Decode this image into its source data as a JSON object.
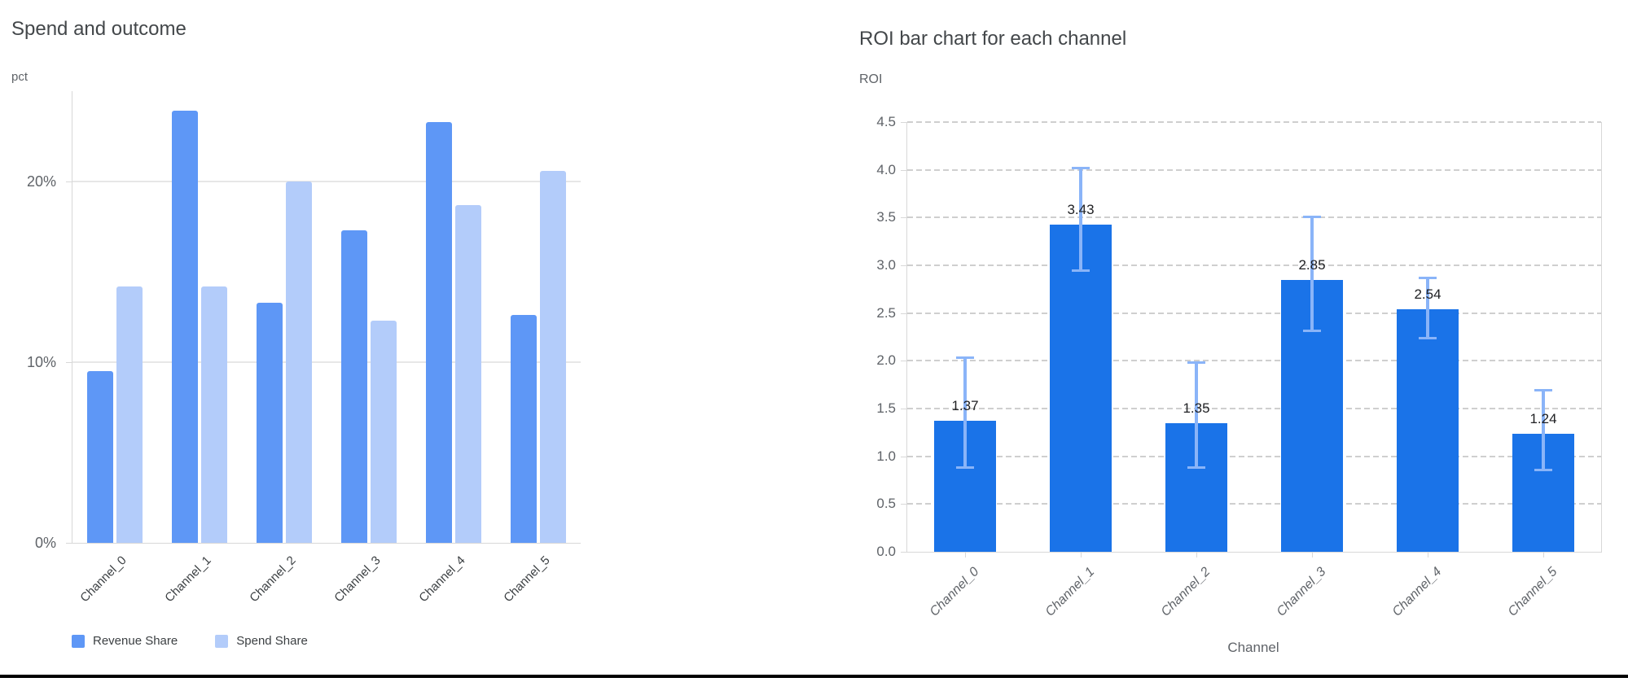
{
  "page": {
    "background": "#ffffff",
    "bottom_rule_color": "#000000"
  },
  "chart_data": [
    {
      "type": "bar",
      "title": "Spend and outcome",
      "ylabel": "pct",
      "xlabel": "",
      "categories": [
        "Channel_0",
        "Channel_1",
        "Channel_2",
        "Channel_3",
        "Channel_4",
        "Channel_5"
      ],
      "series": [
        {
          "name": "Revenue Share",
          "color": "#5e97f6",
          "values": [
            9.5,
            23.9,
            13.3,
            17.3,
            23.3,
            12.6
          ]
        },
        {
          "name": "Spend Share",
          "color": "#b3ccfa",
          "values": [
            14.2,
            14.2,
            20.0,
            12.3,
            18.7,
            20.6
          ]
        }
      ],
      "ylim": [
        0,
        25
      ],
      "yticks": [
        {
          "value": 0,
          "label": "0%"
        },
        {
          "value": 10,
          "label": "10%"
        },
        {
          "value": 20,
          "label": "20%"
        }
      ],
      "grid": "solid",
      "legend_position": "bottom-left"
    },
    {
      "type": "bar",
      "title": "ROI bar chart for each channel",
      "ylabel": "ROI",
      "xlabel": "Channel",
      "categories": [
        "Channel_0",
        "Channel_1",
        "Channel_2",
        "Channel_3",
        "Channel_4",
        "Channel_5"
      ],
      "values": [
        1.37,
        3.43,
        1.35,
        2.85,
        2.54,
        1.24
      ],
      "data_labels": [
        "1.37",
        "3.43",
        "1.35",
        "2.85",
        "2.54",
        "1.24"
      ],
      "error_low": [
        0.89,
        2.95,
        0.89,
        2.32,
        2.24,
        0.86
      ],
      "error_high": [
        2.04,
        4.02,
        1.99,
        3.51,
        2.87,
        1.7
      ],
      "bar_color": "#1a73e8",
      "error_bar_color": "#8ab4f8",
      "ylim": [
        0,
        4.5
      ],
      "yticks": [
        {
          "value": 0,
          "label": "0.0"
        },
        {
          "value": 0.5,
          "label": "0.5"
        },
        {
          "value": 1,
          "label": "1.0"
        },
        {
          "value": 1.5,
          "label": "1.5"
        },
        {
          "value": 2,
          "label": "2.0"
        },
        {
          "value": 2.5,
          "label": "2.5"
        },
        {
          "value": 3,
          "label": "3.0"
        },
        {
          "value": 3.5,
          "label": "3.5"
        },
        {
          "value": 4,
          "label": "4.0"
        },
        {
          "value": 4.5,
          "label": "4.5"
        }
      ],
      "grid": "dashed",
      "legend_position": "none"
    }
  ]
}
